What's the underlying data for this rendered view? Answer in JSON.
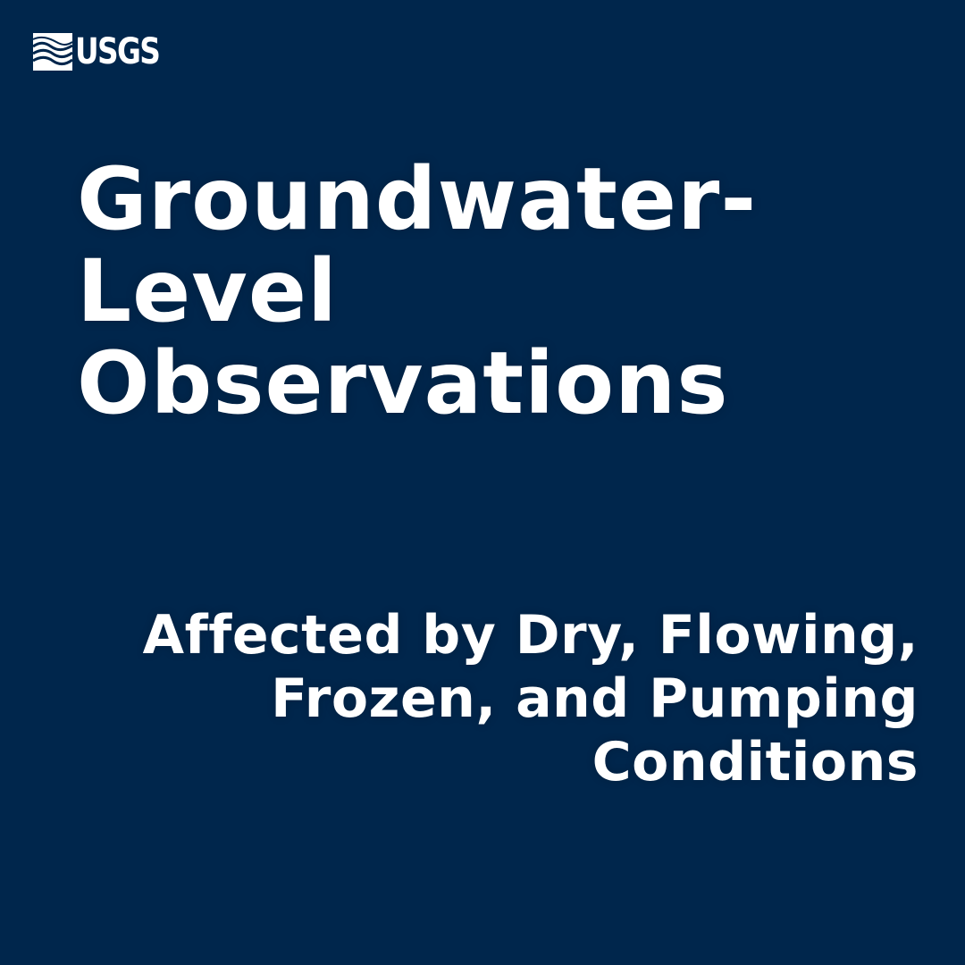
{
  "colors": {
    "background": "#00264c",
    "text": "#ffffff"
  },
  "logo": {
    "icon": "usgs-wave-logo-icon",
    "text": "USGS"
  },
  "headline": {
    "lines": [
      "Groundwater-",
      "Level",
      "Observations"
    ]
  },
  "subheadline": {
    "lines": [
      "Affected by Dry, Flowing,",
      "Frozen, and Pumping",
      "Conditions"
    ]
  }
}
